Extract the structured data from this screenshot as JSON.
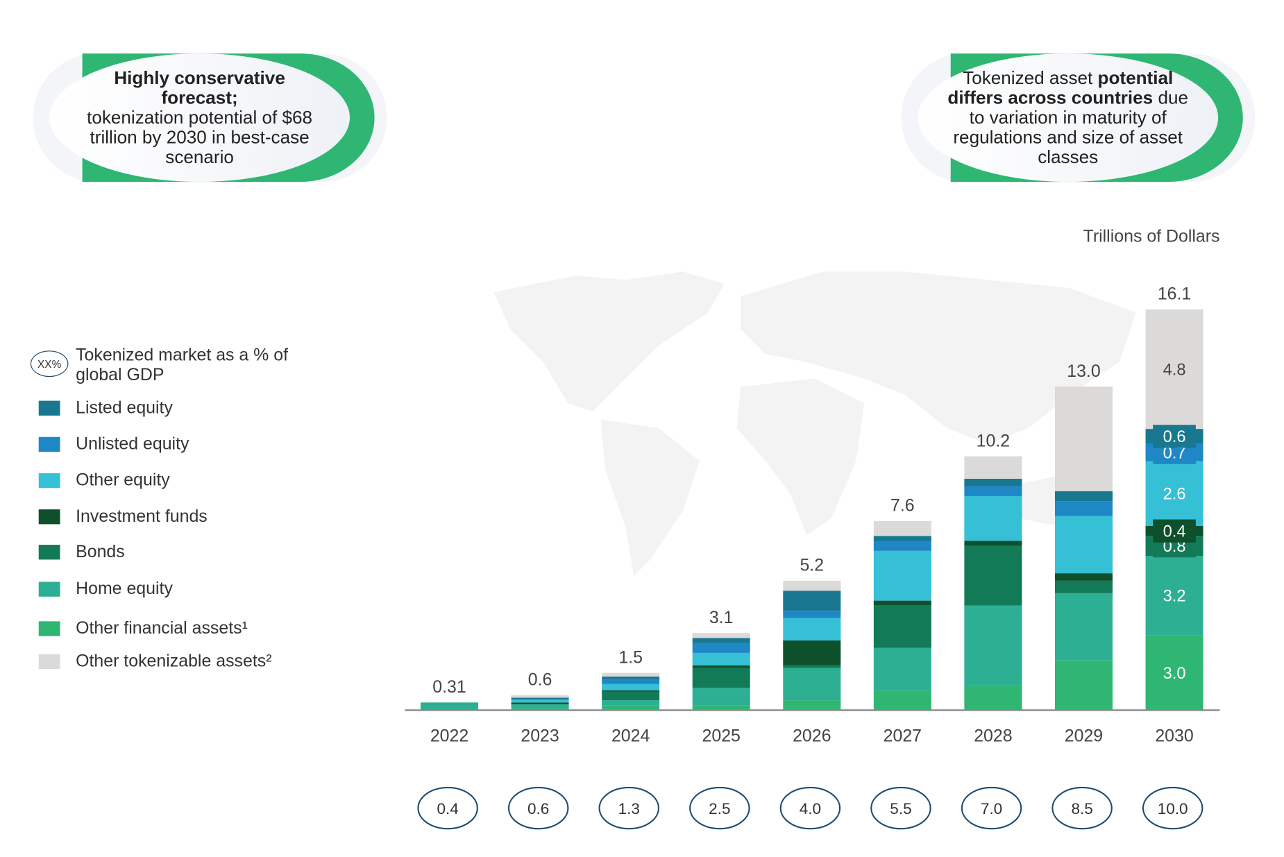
{
  "callouts": {
    "left": {
      "bold": "Highly conservative forecast;",
      "text": "tokenization potential of $68 trillion by 2030 in best-case scenario"
    },
    "right": {
      "pre": "Tokenized asset ",
      "bold": "potential differs across countries",
      "post": " due to variation in maturity of regulations and size of asset classes"
    }
  },
  "legend": {
    "gdp_marker": "XX%",
    "gdp_label": "Tokenized market as a % of global GDP"
  },
  "chart_data": {
    "type": "bar",
    "stacked": true,
    "ylabel": "Trillions of Dollars",
    "ylim": [
      0,
      16.1
    ],
    "grid": false,
    "legend_position": "left",
    "categories": [
      "2022",
      "2023",
      "2024",
      "2025",
      "2026",
      "2027",
      "2028",
      "2029",
      "2030"
    ],
    "totals": [
      "0.31",
      "0.6",
      "1.5",
      "3.1",
      "5.2",
      "7.6",
      "10.2",
      "13.0",
      "16.1"
    ],
    "gdp_percent": [
      "0.4",
      "0.6",
      "1.3",
      "2.5",
      "4.0",
      "5.5",
      "7.0",
      "8.5",
      "10.0"
    ],
    "series": [
      {
        "name": "Other financial assets¹",
        "color": "#2fb673",
        "values": [
          0,
          0.08,
          0.2,
          0.2,
          0.4,
          0.8,
          1.0,
          2.0,
          3.0
        ],
        "labels": [
          "",
          "",
          "",
          "",
          "",
          "",
          "",
          "",
          "3.0"
        ]
      },
      {
        "name": "Home equity",
        "color": "#2daf93",
        "values": [
          0.31,
          0.16,
          0.2,
          0.7,
          1.3,
          1.7,
          3.2,
          2.7,
          3.2
        ],
        "labels": [
          "",
          "",
          "",
          "",
          "",
          "",
          "",
          "",
          "3.2"
        ]
      },
      {
        "name": "Bonds",
        "color": "#137a57",
        "values": [
          0,
          0.0,
          0.35,
          0.8,
          0.1,
          1.7,
          2.4,
          0.5,
          0.8
        ],
        "labels": [
          "",
          "",
          "",
          "",
          "",
          "",
          "",
          "",
          "0.8"
        ]
      },
      {
        "name": "Investment funds",
        "color": "#0e4f2c",
        "values": [
          0,
          0.07,
          0.05,
          0.1,
          1.0,
          0.2,
          0.2,
          0.3,
          0.4
        ],
        "labels": [
          "",
          "",
          "",
          "",
          "",
          "",
          "",
          "",
          "0.4"
        ]
      },
      {
        "name": "Other equity",
        "color": "#35c0d5",
        "values": [
          0,
          0.1,
          0.25,
          0.5,
          0.9,
          2.0,
          1.8,
          2.3,
          2.6
        ],
        "labels": [
          "",
          "",
          "",
          "",
          "",
          "",
          "",
          "",
          "2.6"
        ]
      },
      {
        "name": "Unlisted equity",
        "color": "#1e88c6",
        "values": [
          0,
          0.03,
          0.2,
          0.4,
          0.3,
          0.4,
          0.4,
          0.6,
          0.7
        ],
        "labels": [
          "",
          "",
          "",
          "",
          "",
          "",
          "",
          "",
          "0.7"
        ]
      },
      {
        "name": "Listed equity",
        "color": "#17788f",
        "values": [
          0,
          0.06,
          0.1,
          0.2,
          0.8,
          0.2,
          0.3,
          0.4,
          0.6
        ],
        "labels": [
          "",
          "",
          "",
          "",
          "",
          "",
          "",
          "",
          "0.6"
        ]
      },
      {
        "name": "Other tokenizable assets²",
        "color": "#dbdad8",
        "values": [
          0,
          0.1,
          0.15,
          0.2,
          0.4,
          0.6,
          0.9,
          4.2,
          4.8
        ],
        "labels": [
          "",
          "",
          "",
          "",
          "",
          "",
          "",
          "",
          "4.8"
        ]
      }
    ],
    "legend_order": [
      6,
      5,
      4,
      3,
      2,
      1,
      0,
      7
    ]
  }
}
